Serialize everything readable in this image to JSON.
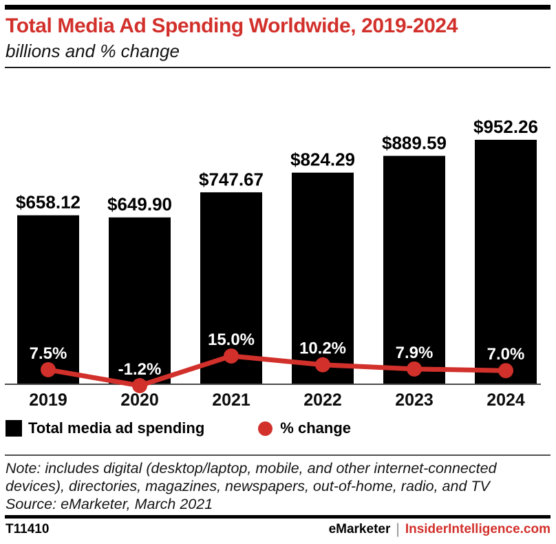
{
  "header": {
    "title": "Total Media Ad Spending Worldwide, 2019-2024",
    "subtitle": "billions and % change"
  },
  "chart_data": {
    "type": "bar",
    "title": "Total Media Ad Spending Worldwide, 2019-2024",
    "subtitle": "billions and % change",
    "categories": [
      "2019",
      "2020",
      "2021",
      "2022",
      "2023",
      "2024"
    ],
    "series": [
      {
        "name": "Total media ad spending",
        "type": "bar",
        "unit": "USD billions",
        "values": [
          658.12,
          649.9,
          747.67,
          824.29,
          889.59,
          952.26
        ],
        "labels": [
          "$658.12",
          "$649.90",
          "$747.67",
          "$824.29",
          "$889.59",
          "$952.26"
        ],
        "color": "#000000"
      },
      {
        "name": "% change",
        "type": "line",
        "unit": "percent",
        "values": [
          7.5,
          -1.2,
          15.0,
          10.2,
          7.9,
          7.0
        ],
        "labels": [
          "7.5%",
          "-1.2%",
          "15.0%",
          "10.2%",
          "7.9%",
          "7.0%"
        ],
        "color": "#d2302b"
      }
    ],
    "legend_position": "bottom",
    "grid": false,
    "y_axis_shown": false
  },
  "legend": {
    "bar_label": "Total media ad spending",
    "line_label": "% change"
  },
  "note": {
    "note_text": "Note: includes digital (desktop/laptop, mobile, and other internet-connected devices), directories, magazines, newspapers, out-of-home, radio, and TV",
    "source_text": "Source: eMarketer, March 2021"
  },
  "footer": {
    "chart_id": "T11410",
    "brand": "eMarketer",
    "separator": "|",
    "site": "InsiderIntelligence.com"
  },
  "colors": {
    "accent_red": "#d2302b",
    "bar_black": "#000000",
    "axis_gray": "#4a4a4a"
  }
}
